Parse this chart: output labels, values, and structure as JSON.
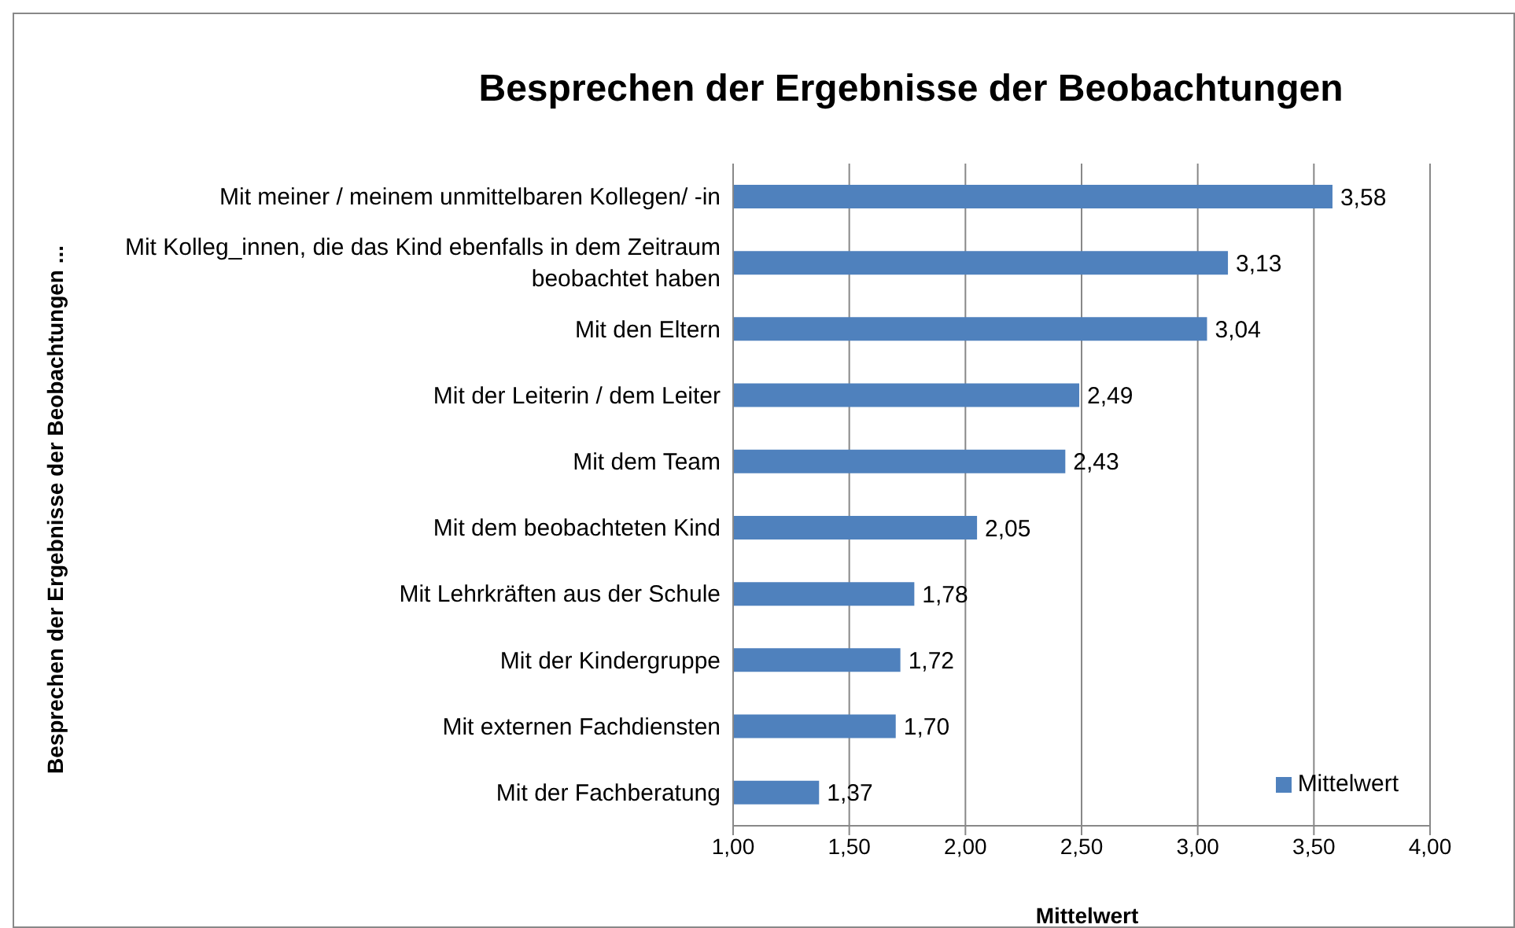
{
  "chart_data": {
    "type": "bar",
    "orientation": "horizontal",
    "title": "Besprechen der Ergebnisse der Beobachtungen",
    "xlabel": "Mittelwert",
    "ylabel": "Besprechen der Ergebnisse der Beobachtungen ...",
    "categories": [
      "Mit meiner / meinem unmittelbaren Kollegen/ -in",
      "Mit Kolleg_innen, die das Kind ebenfalls in dem Zeitraum beobachtet haben",
      "Mit den Eltern",
      "Mit der Leiterin / dem Leiter",
      "Mit dem Team",
      "Mit dem beobachteten Kind",
      "Mit Lehrkräften aus der Schule",
      "Mit der Kindergruppe",
      "Mit externen Fachdiensten",
      "Mit der Fachberatung"
    ],
    "series": [
      {
        "name": "Mittelwert",
        "color": "#4f81bd",
        "values": [
          3.58,
          3.13,
          3.04,
          2.49,
          2.43,
          2.05,
          1.78,
          1.72,
          1.7,
          1.37
        ],
        "value_labels": [
          "3,58",
          "3,13",
          "3,04",
          "2,49",
          "2,43",
          "2,05",
          "1,78",
          "1,72",
          "1,70",
          "1,37"
        ]
      }
    ],
    "xlim": [
      1,
      4
    ],
    "xticks": [
      {
        "value": 1,
        "label": "1,00"
      },
      {
        "value": 1.5,
        "label": "1,50"
      },
      {
        "value": 2,
        "label": "2,00"
      },
      {
        "value": 2.5,
        "label": "2,50"
      },
      {
        "value": 3,
        "label": "3,00"
      },
      {
        "value": 3.5,
        "label": "3,50"
      },
      {
        "value": 4,
        "label": "4,00"
      }
    ],
    "grid": "x",
    "legend": "bottom right"
  }
}
